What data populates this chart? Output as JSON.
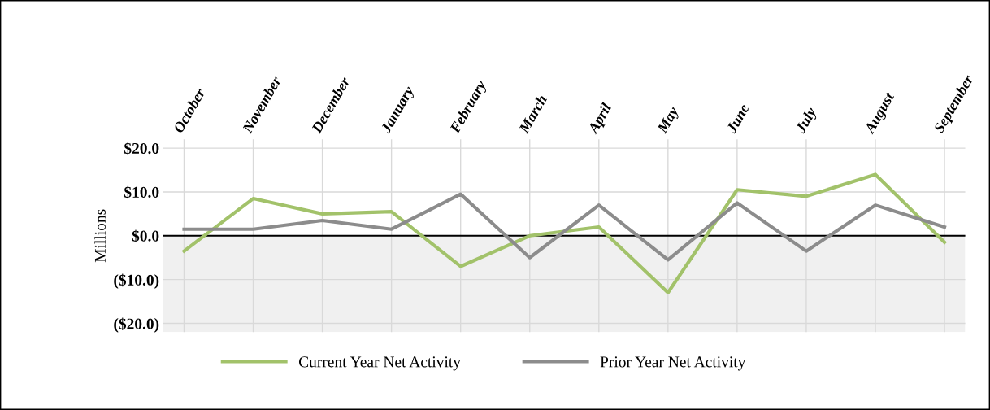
{
  "chart_data": {
    "type": "line",
    "ylabel": "Millions",
    "categories": [
      "October",
      "November",
      "December",
      "January",
      "February",
      "March",
      "April",
      "May",
      "June",
      "July",
      "August",
      "September"
    ],
    "series": [
      {
        "name": "Current Year Net Activity",
        "color": "#a2c26a",
        "values": [
          -3.5,
          8.5,
          5,
          5.5,
          -7,
          0,
          2,
          -13,
          10.5,
          9,
          14,
          -1.5
        ]
      },
      {
        "name": "Prior Year Net Activity",
        "color": "#8c8c8c",
        "values": [
          1.5,
          1.5,
          3.5,
          1.5,
          9.5,
          -5,
          7,
          -5.5,
          7.5,
          -3.5,
          7,
          2
        ]
      }
    ],
    "ylim": [
      -22,
      22
    ],
    "yticks": [
      {
        "value": 20,
        "label": "$20.0"
      },
      {
        "value": 10,
        "label": "$10.0"
      },
      {
        "value": 0,
        "label": "$0.0"
      },
      {
        "value": -10,
        "label": "($10.0)"
      },
      {
        "value": -20,
        "label": "($20.0)"
      }
    ],
    "ref_lines": [
      {
        "axis": "y",
        "value": 0,
        "label": null,
        "color": "#000000"
      }
    ],
    "bands": [
      {
        "axis": "y",
        "from": -22,
        "to": 0,
        "label": null,
        "color": "#f0f0f0"
      }
    ],
    "grid": true,
    "legend": "bottom",
    "marker": "none",
    "line_style": "solid"
  }
}
